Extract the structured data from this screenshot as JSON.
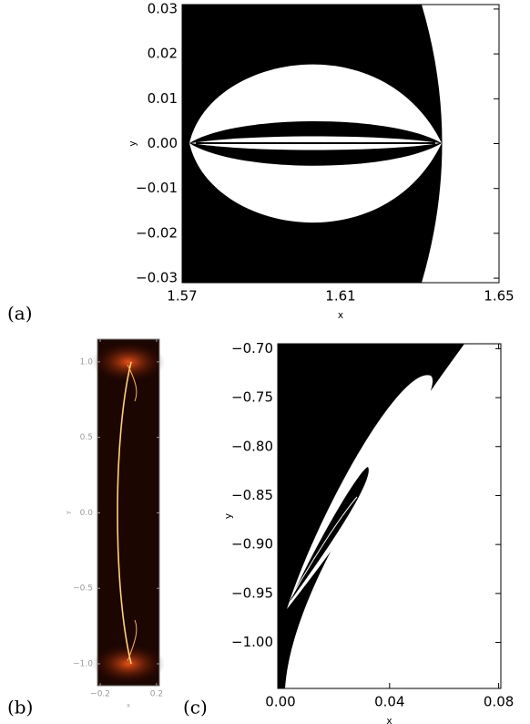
{
  "chart_data": [
    {
      "type": "image",
      "panel": "(a)",
      "xlabel": "x",
      "ylabel": "y",
      "xlim": [
        1.57,
        1.65
      ],
      "ylim": [
        -0.031,
        0.031
      ],
      "xticks": [
        1.57,
        1.61,
        1.65
      ],
      "yticks": [
        {
          "value": -0.03,
          "label": "−0.03"
        },
        {
          "value": -0.02,
          "label": "−0.02"
        },
        {
          "value": -0.01,
          "label": "−0.01"
        },
        {
          "value": 0,
          "label": "0.00"
        },
        0.01,
        0.02,
        0.03
      ]
    },
    {
      "type": "image",
      "panel": "(b)",
      "xlabel": "x",
      "ylabel": "y",
      "xlim": [
        -0.22,
        0.22
      ],
      "ylim": [
        -1.145,
        1.15
      ],
      "xticks": [
        {
          "value": -0.2,
          "label": "−0.2"
        },
        0.2
      ],
      "yticks": [
        {
          "value": -1,
          "label": "−1.0"
        },
        {
          "value": -0.5,
          "label": "−0.5"
        },
        {
          "value": 0,
          "label": "0.0"
        },
        0.5,
        {
          "value": 1,
          "label": "1.0"
        }
      ]
    },
    {
      "type": "image",
      "panel": "(c)",
      "xlabel": "x",
      "ylabel": "y",
      "xlim": [
        -0.001,
        0.0808
      ],
      "ylim": [
        -1.047,
        -0.695
      ],
      "xticks": [
        {
          "value": 0,
          "label": "0.00"
        },
        0.04,
        0.08
      ],
      "yticks": [
        {
          "value": -1,
          "label": "−1.00"
        },
        {
          "value": -0.95,
          "label": "−0.95"
        },
        {
          "value": -0.9,
          "label": "−0.90"
        },
        {
          "value": -0.85,
          "label": "−0.85"
        },
        {
          "value": -0.8,
          "label": "−0.80"
        },
        {
          "value": -0.75,
          "label": "−0.75"
        },
        {
          "value": -0.7,
          "label": "−0.70"
        }
      ]
    }
  ]
}
